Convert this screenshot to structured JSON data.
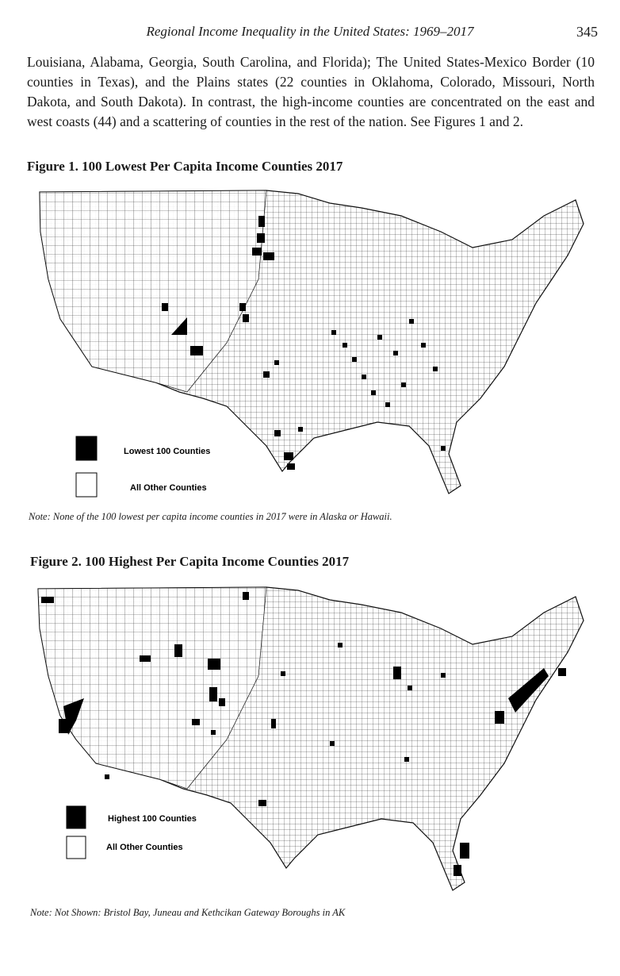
{
  "header": {
    "title": "Regional Income Inequality in the United States: 1969–2017",
    "page_number": "345"
  },
  "body": {
    "paragraph": "Louisiana, Alabama, Georgia, South Carolina, and Florida); The United States-Mexico Border (10 counties in Texas), and the Plains states (22 counties in Oklahoma, Colorado, Missouri, North Dakota, and South Dakota). In contrast, the high-income counties are concentrated on the east and west coasts (44) and a scattering of counties in the rest of the nation. See Figures 1 and 2."
  },
  "figure1": {
    "title": "Figure 1. 100 Lowest Per Capita Income Counties 2017",
    "legend": {
      "filled_label": "Lowest 100 Counties",
      "empty_label": "All Other Counties"
    },
    "note": "Note: None of the 100 lowest per capita income counties in 2017 were in Alaska or Hawaii.",
    "colors": {
      "highlight": "#000000",
      "other": "#ffffff"
    }
  },
  "figure2": {
    "title": "Figure 2. 100 Highest Per Capita Income Counties 2017",
    "legend": {
      "filled_label": "Highest 100 Counties",
      "empty_label": "All Other Counties"
    },
    "note": "Note: Not Shown: Bristol Bay, Juneau and Kethcikan Gateway Boroughs in AK",
    "colors": {
      "highlight": "#000000",
      "other": "#ffffff"
    }
  }
}
